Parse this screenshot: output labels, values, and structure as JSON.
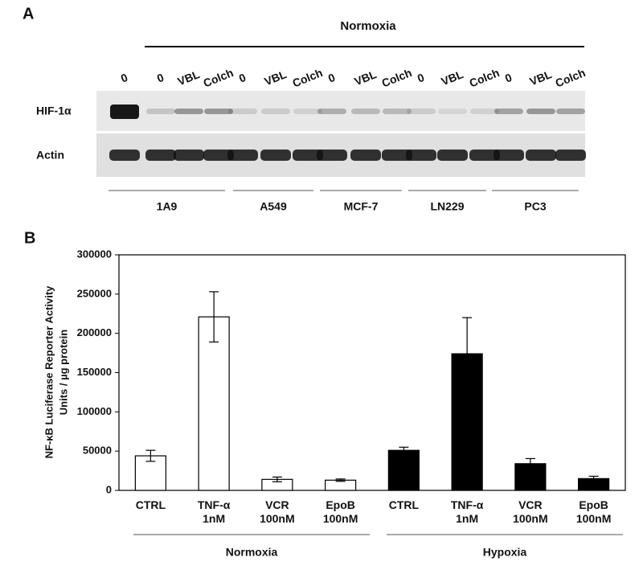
{
  "blot": {
    "panel_label": "A",
    "condition": "Normoxia",
    "lanes": [
      "0",
      "0",
      "VBL",
      "Colch",
      "0",
      "VBL",
      "Colch",
      "0",
      "VBL",
      "Colch",
      "0",
      "VBL",
      "Colch",
      "0",
      "VBL",
      "Colch"
    ],
    "rows": [
      "HIF-1α",
      "Actin"
    ],
    "cell_lines": [
      "1A9",
      "A549",
      "MCF-7",
      "LN229",
      "PC3"
    ]
  },
  "chart_data": {
    "type": "bar",
    "panel_label": "B",
    "y_label": [
      "NF-κB Luciferase Reporter Activity",
      "Units / µg protein"
    ],
    "categories": [
      "CTRL",
      "TNF-α 1nM",
      "VCR 100nM",
      "EpoB 100nM",
      "CTRL",
      "TNF-α 1nM",
      "VCR 100nM",
      "EpoB 100nM"
    ],
    "series": [
      {
        "name": "Normoxia",
        "color": "#ffffff",
        "values": [
          44000,
          221000,
          14000,
          13000,
          null,
          null,
          null,
          null
        ],
        "errors": [
          7000,
          32000,
          3000,
          1500,
          null,
          null,
          null,
          null
        ]
      },
      {
        "name": "Hypoxia",
        "color": "#000000",
        "values": [
          null,
          null,
          null,
          null,
          51000,
          174000,
          34000,
          15000
        ],
        "errors": [
          null,
          null,
          null,
          null,
          4000,
          46000,
          6500,
          3000
        ]
      }
    ],
    "ylim": [
      0,
      300000
    ],
    "yticks": [
      0,
      50000,
      100000,
      150000,
      200000,
      250000,
      300000
    ]
  }
}
